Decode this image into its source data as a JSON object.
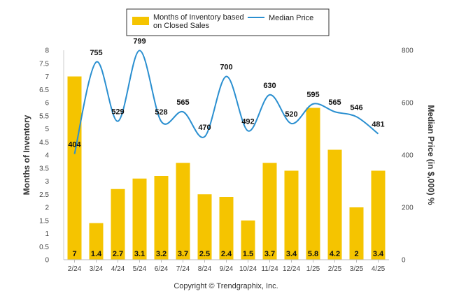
{
  "chart_data": {
    "type": "bar",
    "categories": [
      "2/24",
      "3/24",
      "4/24",
      "5/24",
      "6/24",
      "7/24",
      "8/24",
      "9/24",
      "10/24",
      "11/24",
      "12/24",
      "1/25",
      "2/25",
      "3/25",
      "4/25"
    ],
    "series": [
      {
        "name": "Months of Inventory based on Closed Sales",
        "type": "bar",
        "axis": "left",
        "color": "#f5c400",
        "values": [
          7,
          1.4,
          2.7,
          3.1,
          3.2,
          3.7,
          2.5,
          2.4,
          1.5,
          3.7,
          3.4,
          5.8,
          4.2,
          2,
          3.4
        ],
        "labels": [
          "7",
          "1.4",
          "2.7",
          "3.1",
          "3.2",
          "3.7",
          "2.5",
          "2.4",
          "1.5",
          "3.7",
          "3.4",
          "5.8",
          "4.2",
          "2",
          "3.4"
        ]
      },
      {
        "name": "Median Price",
        "type": "line",
        "axis": "right",
        "color": "#2a8fd0",
        "values": [
          404,
          755,
          529,
          799,
          528,
          565,
          470,
          700,
          492,
          630,
          520,
          595,
          565,
          546,
          481
        ],
        "labels": [
          "404",
          "755",
          "529",
          "799",
          "528",
          "565",
          "470",
          "700",
          "492",
          "630",
          "520",
          "595",
          "565",
          "546",
          "481"
        ]
      }
    ],
    "legend": {
      "placement": "top-center",
      "bar_lines": [
        "Months of Inventory based",
        "on Closed Sales"
      ],
      "line_label": "Median Price"
    },
    "y_left": {
      "label": "Months of Inventory",
      "ylim": [
        0,
        8
      ],
      "ticks": [
        "0",
        "0.5",
        "1",
        "1.5",
        "2",
        "2.5",
        "3",
        "3.5",
        "4",
        "4.5",
        "5",
        "5.5",
        "6",
        "6.5",
        "7",
        "7.5",
        "8"
      ]
    },
    "y_right": {
      "label": "Median Price (in $,000) %",
      "ylim": [
        0,
        800
      ],
      "ticks": [
        "0",
        "200",
        "400",
        "600",
        "800"
      ]
    },
    "grid": false,
    "footer": "Copyright © Trendgraphix, Inc."
  }
}
